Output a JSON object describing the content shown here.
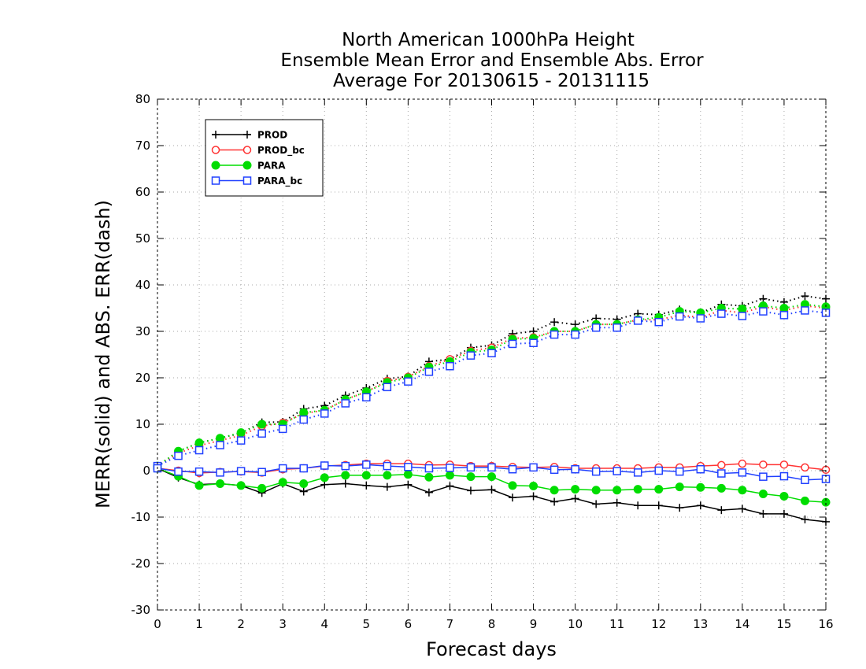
{
  "chart_data": {
    "type": "line",
    "title_lines": [
      "North American 1000hPa Height",
      "Ensemble Mean Error and Ensemble Abs. Error",
      "Average For 20130615 - 20131115"
    ],
    "xlabel": "Forecast days",
    "ylabel": "MERR(solid) and ABS. ERR(dash)",
    "xlim": [
      0,
      16
    ],
    "ylim": [
      -30,
      80
    ],
    "xticks": [
      0,
      1,
      2,
      3,
      4,
      5,
      6,
      7,
      8,
      9,
      10,
      11,
      12,
      13,
      14,
      15,
      16
    ],
    "yticks": [
      -30,
      -20,
      -10,
      0,
      10,
      20,
      30,
      40,
      50,
      60,
      70,
      80
    ],
    "grid": true,
    "legend_position": "top-left",
    "x": [
      0,
      0.5,
      1,
      1.5,
      2,
      2.5,
      3,
      3.5,
      4,
      4.5,
      5,
      5.5,
      6,
      6.5,
      7,
      7.5,
      8,
      8.5,
      9,
      9.5,
      10,
      10.5,
      11,
      11.5,
      12,
      12.5,
      13,
      13.5,
      14,
      14.5,
      15,
      15.5,
      16
    ],
    "series": [
      {
        "name": "PROD",
        "color": "#000000",
        "marker": "plus",
        "merr": [
          0.5,
          -1.5,
          -3,
          -2.8,
          -3.2,
          -4.8,
          -2.8,
          -4.5,
          -3,
          -2.8,
          -3.2,
          -3.5,
          -3,
          -4.7,
          -3.3,
          -4.3,
          -4.1,
          -5.8,
          -5.5,
          -6.7,
          -6,
          -7.2,
          -6.9,
          -7.5,
          -7.5,
          -8,
          -7.5,
          -8.5,
          -8.2,
          -9.3,
          -9.3,
          -10.5,
          -11
        ],
        "abserr": [
          1,
          4.2,
          6,
          7,
          8.1,
          10.4,
          10.5,
          13.3,
          14,
          16.2,
          17.8,
          19.8,
          20.3,
          23.5,
          24,
          26.5,
          27,
          29.5,
          30,
          32,
          31.5,
          32.8,
          32.6,
          33.8,
          33.6,
          34.7,
          34,
          35.8,
          35.5,
          37,
          36.3,
          37.6,
          37
        ]
      },
      {
        "name": "PROD_bc",
        "color": "#ff3333",
        "marker": "circle",
        "merr": [
          0.5,
          0,
          -0.5,
          -0.3,
          -0.2,
          -0.4,
          0.3,
          0.5,
          1,
          1.2,
          1.5,
          1.5,
          1.5,
          1.2,
          1.3,
          1,
          1,
          0.8,
          0.7,
          0.8,
          0.5,
          0.5,
          0.5,
          0.5,
          0.7,
          0.7,
          1,
          1.2,
          1.5,
          1.3,
          1.3,
          0.7,
          0.2
        ],
        "abserr": [
          1,
          3.8,
          5.4,
          6.5,
          7.6,
          9.6,
          10.3,
          12.3,
          13,
          15.3,
          17,
          19.3,
          20.2,
          22.5,
          24,
          25.8,
          26.5,
          28.5,
          28.7,
          30,
          30,
          31.5,
          31.5,
          32.5,
          32.5,
          33.5,
          33,
          34.5,
          34,
          35.3,
          34.5,
          35.5,
          35
        ]
      },
      {
        "name": "PARA",
        "color": "#00dd00",
        "marker": "dot",
        "merr": [
          0.5,
          -1.2,
          -3.2,
          -2.8,
          -3.2,
          -3.8,
          -2.5,
          -2.8,
          -1.5,
          -1,
          -1,
          -1,
          -0.8,
          -1.4,
          -1,
          -1.3,
          -1.3,
          -3.2,
          -3.3,
          -4.2,
          -4,
          -4.2,
          -4.2,
          -4,
          -4,
          -3.5,
          -3.6,
          -3.8,
          -4.2,
          -5,
          -5.5,
          -6.5,
          -6.8
        ],
        "abserr": [
          1,
          4.2,
          6,
          7,
          8.2,
          10,
          10,
          12.5,
          13,
          15.3,
          17,
          19,
          20,
          22.3,
          23.5,
          25.5,
          26,
          28.3,
          28.5,
          30,
          30,
          31.5,
          31.5,
          32.5,
          33,
          34.3,
          34,
          35,
          34.8,
          35.5,
          35,
          35.8,
          35.3
        ]
      },
      {
        "name": "PARA_bc",
        "color": "#2040ff",
        "marker": "square",
        "merr": [
          0.5,
          -0.2,
          -0.2,
          -0.4,
          -0.1,
          -0.3,
          0.5,
          0.5,
          1.1,
          1,
          1.3,
          1,
          0.8,
          0.5,
          0.6,
          0.7,
          0.7,
          0.3,
          0.7,
          0.2,
          0.3,
          -0.2,
          -0.1,
          -0.4,
          0,
          -0.2,
          0.3,
          -0.6,
          -0.4,
          -1.3,
          -1.2,
          -2,
          -1.8
        ],
        "abserr": [
          1,
          3.2,
          4.4,
          5.5,
          6.5,
          8,
          9,
          11,
          12.3,
          14.5,
          15.8,
          18,
          19.2,
          21.3,
          22.5,
          24.8,
          25.3,
          27.3,
          27.5,
          29.3,
          29.3,
          30.8,
          30.8,
          32.3,
          32,
          33.2,
          32.8,
          33.8,
          33.3,
          34.3,
          33.5,
          34.5,
          34
        ]
      }
    ]
  }
}
